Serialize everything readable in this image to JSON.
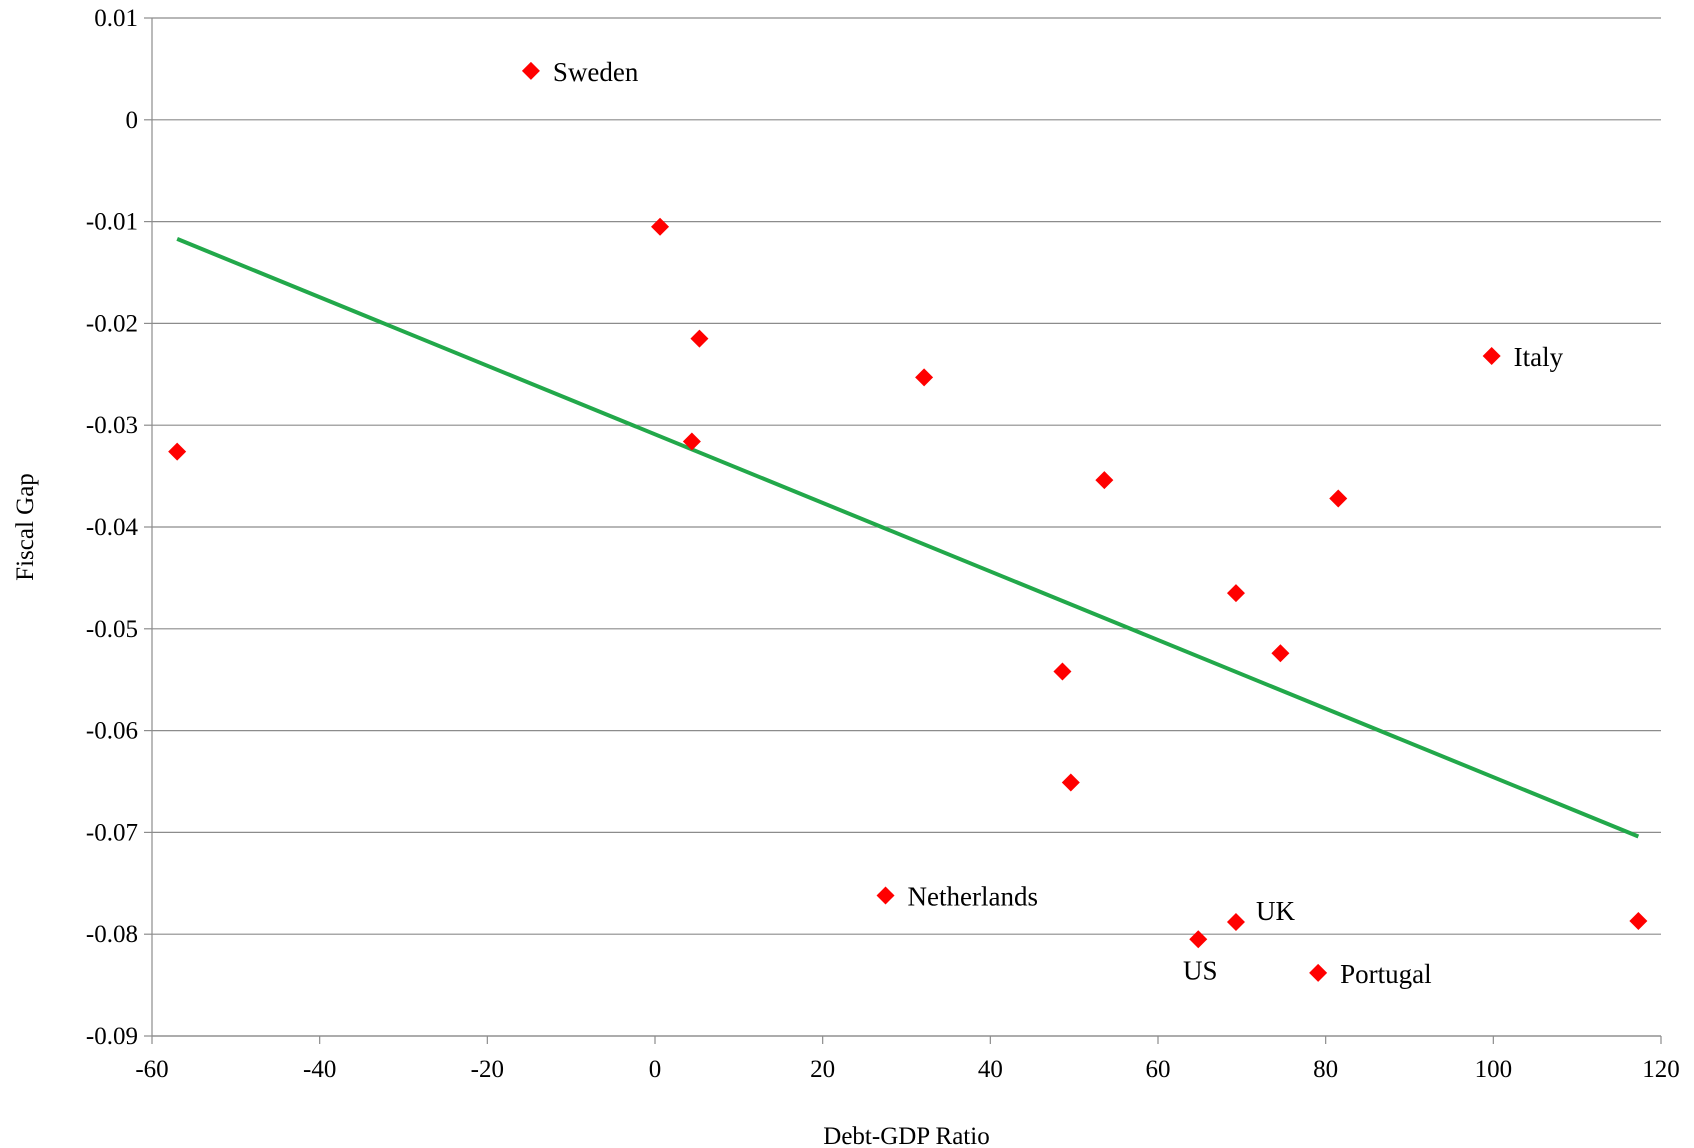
{
  "chart_data": {
    "type": "scatter",
    "title": "",
    "xlabel": "Debt-GDP Ratio",
    "ylabel": "Fiscal Gap",
    "xlim": [
      -60,
      120
    ],
    "ylim": [
      -0.09,
      0.01
    ],
    "xticks": [
      -60,
      -40,
      -20,
      0,
      20,
      40,
      60,
      80,
      100,
      120
    ],
    "yticks": [
      0.01,
      0,
      -0.01,
      -0.02,
      -0.03,
      -0.04,
      -0.05,
      -0.06,
      -0.07,
      -0.08,
      -0.09
    ],
    "xtick_labels": [
      "-60",
      "-40",
      "-20",
      "0",
      "20",
      "40",
      "60",
      "80",
      "100",
      "120"
    ],
    "ytick_labels": [
      "0.01",
      "0",
      "-0.01",
      "-0.02",
      "-0.03",
      "-0.04",
      "-0.05",
      "-0.06",
      "-0.07",
      "-0.08",
      "-0.09"
    ],
    "grid": true,
    "marker_color": "#ff0000",
    "trend_color": "#22a84a",
    "points": [
      {
        "x": -14.8,
        "y": 0.0048,
        "label": "Sweden"
      },
      {
        "x": -57.0,
        "y": -0.0326,
        "label": ""
      },
      {
        "x": 0.6,
        "y": -0.0105,
        "label": ""
      },
      {
        "x": 5.3,
        "y": -0.0215,
        "label": ""
      },
      {
        "x": 4.4,
        "y": -0.0316,
        "label": ""
      },
      {
        "x": 32.1,
        "y": -0.0253,
        "label": ""
      },
      {
        "x": 53.6,
        "y": -0.0354,
        "label": ""
      },
      {
        "x": 81.5,
        "y": -0.0372,
        "label": ""
      },
      {
        "x": 99.8,
        "y": -0.0232,
        "label": "Italy"
      },
      {
        "x": 69.3,
        "y": -0.0465,
        "label": ""
      },
      {
        "x": 74.6,
        "y": -0.0524,
        "label": ""
      },
      {
        "x": 48.6,
        "y": -0.0542,
        "label": ""
      },
      {
        "x": 49.6,
        "y": -0.0651,
        "label": ""
      },
      {
        "x": 27.5,
        "y": -0.0762,
        "label": "Netherlands"
      },
      {
        "x": 64.8,
        "y": -0.0805,
        "label": "US"
      },
      {
        "x": 69.3,
        "y": -0.0788,
        "label": "UK"
      },
      {
        "x": 79.1,
        "y": -0.0838,
        "label": "Portugal"
      },
      {
        "x": 117.3,
        "y": -0.0787,
        "label": ""
      }
    ],
    "trendline": {
      "x": [
        -57.0,
        117.3
      ],
      "y": [
        -0.0117,
        -0.0704
      ]
    }
  }
}
